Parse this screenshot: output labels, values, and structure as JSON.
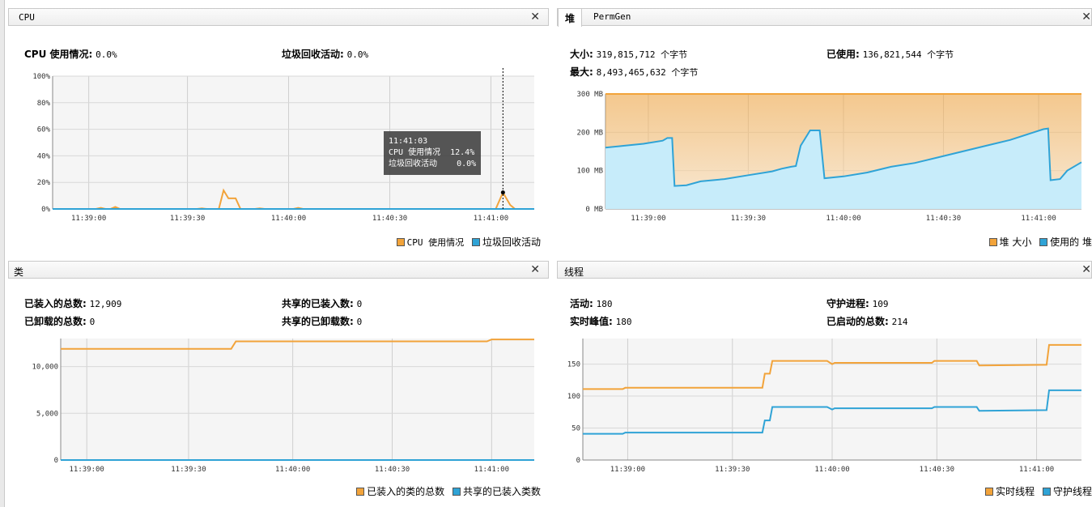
{
  "cpu": {
    "title": "CPU",
    "usage_label": "CPU 使用情况:",
    "usage_value": "0.0%",
    "gc_label": "垃圾回收活动:",
    "gc_value": "0.0%",
    "yticks": [
      "100%",
      "80%",
      "60%",
      "40%",
      "20%",
      "0%"
    ],
    "xticks": [
      "11:39:00",
      "11:39:30",
      "11:40:00",
      "11:40:30",
      "11:41:00"
    ],
    "tooltip": {
      "time": "11:41:03",
      "line1": "CPU 使用情况  12.4%",
      "line2": "垃圾回收活动    0.0%"
    },
    "legend": [
      "CPU 使用情况",
      "垃圾回收活动"
    ],
    "colors": {
      "cpu": "#f2a33a",
      "gc": "#2fa3d6"
    }
  },
  "heap": {
    "tabs": [
      "堆",
      "PermGen"
    ],
    "size_label": "大小:",
    "size_value": "319,815,712 个字节",
    "used_label": "已使用:",
    "used_value": "136,821,544 个字节",
    "max_label": "最大:",
    "max_value": "8,493,465,632 个字节",
    "yticks": [
      "300 MB",
      "200 MB",
      "100 MB",
      "0 MB"
    ],
    "xticks": [
      "11:39:00",
      "11:39:30",
      "11:40:00",
      "11:40:30",
      "11:41:00"
    ],
    "legend": [
      "堆 大小",
      "使用的 堆"
    ]
  },
  "classes": {
    "title": "类",
    "loaded_label": "已装入的总数:",
    "loaded_value": "12,909",
    "unloaded_label": "已卸载的总数:",
    "unloaded_value": "0",
    "shared_loaded_label": "共享的已装入数:",
    "shared_loaded_value": "0",
    "shared_unloaded_label": "共享的已卸载数:",
    "shared_unloaded_value": "0",
    "yticks": [
      "10,000",
      "5,000",
      "0"
    ],
    "xticks": [
      "11:39:00",
      "11:39:30",
      "11:40:00",
      "11:40:30",
      "11:41:00"
    ],
    "legend": [
      "已装入的类的总数",
      "共享的已装入类数"
    ]
  },
  "threads": {
    "title": "线程",
    "live_label": "活动:",
    "live_value": "180",
    "daemon_label": "守护进程:",
    "daemon_value": "109",
    "peak_label": "实时峰值:",
    "peak_value": "180",
    "started_label": "已启动的总数:",
    "started_value": "214",
    "yticks": [
      "150",
      "100",
      "50",
      "0"
    ],
    "xticks": [
      "11:39:00",
      "11:39:30",
      "11:40:00",
      "11:40:30",
      "11:41:00"
    ],
    "legend": [
      "实时线程",
      "守护线程"
    ]
  },
  "chart_data": [
    {
      "type": "line",
      "title": "CPU",
      "ylim": [
        0,
        100
      ],
      "series": [
        {
          "name": "CPU 使用情况",
          "points": [
            [
              0,
              0
            ],
            [
              0.09,
              0
            ],
            [
              0.1,
              0.8
            ],
            [
              0.11,
              0
            ],
            [
              0.12,
              0
            ],
            [
              0.13,
              1.5
            ],
            [
              0.14,
              0
            ],
            [
              0.3,
              0
            ],
            [
              0.31,
              0.5
            ],
            [
              0.32,
              0
            ],
            [
              0.345,
              0
            ],
            [
              0.355,
              14
            ],
            [
              0.365,
              8
            ],
            [
              0.38,
              8
            ],
            [
              0.39,
              0
            ],
            [
              0.42,
              0
            ],
            [
              0.43,
              0.5
            ],
            [
              0.44,
              0
            ],
            [
              0.5,
              0
            ],
            [
              0.51,
              0.8
            ],
            [
              0.52,
              0
            ],
            [
              0.92,
              0
            ],
            [
              0.935,
              12.4
            ],
            [
              0.95,
              3
            ],
            [
              0.96,
              0
            ],
            [
              1.0,
              0
            ]
          ]
        },
        {
          "name": "垃圾回收活动",
          "points": [
            [
              0,
              0
            ],
            [
              1,
              0
            ]
          ]
        }
      ]
    },
    {
      "type": "area",
      "title": "堆",
      "ylim": [
        0,
        300
      ],
      "series": [
        {
          "name": "堆 大小",
          "points": [
            [
              0,
              300
            ],
            [
              1,
              300
            ]
          ]
        },
        {
          "name": "使用的 堆",
          "points": [
            [
              0,
              160
            ],
            [
              0.04,
              165
            ],
            [
              0.08,
              170
            ],
            [
              0.12,
              178
            ],
            [
              0.13,
              185
            ],
            [
              0.14,
              185
            ],
            [
              0.145,
              60
            ],
            [
              0.17,
              62
            ],
            [
              0.2,
              72
            ],
            [
              0.25,
              78
            ],
            [
              0.3,
              88
            ],
            [
              0.35,
              98
            ],
            [
              0.37,
              105
            ],
            [
              0.39,
              110
            ],
            [
              0.4,
              112
            ],
            [
              0.41,
              165
            ],
            [
              0.42,
              185
            ],
            [
              0.43,
              205
            ],
            [
              0.45,
              205
            ],
            [
              0.46,
              80
            ],
            [
              0.5,
              85
            ],
            [
              0.55,
              95
            ],
            [
              0.6,
              110
            ],
            [
              0.65,
              120
            ],
            [
              0.7,
              135
            ],
            [
              0.75,
              150
            ],
            [
              0.8,
              165
            ],
            [
              0.85,
              180
            ],
            [
              0.9,
              200
            ],
            [
              0.92,
              208
            ],
            [
              0.93,
              210
            ],
            [
              0.935,
              75
            ],
            [
              0.955,
              78
            ],
            [
              0.97,
              100
            ],
            [
              1.0,
              122
            ]
          ]
        }
      ]
    },
    {
      "type": "line",
      "title": "类",
      "ylim": [
        0,
        13000
      ],
      "series": [
        {
          "name": "已装入的类的总数",
          "points": [
            [
              0,
              11900
            ],
            [
              0.36,
              11900
            ],
            [
              0.37,
              12700
            ],
            [
              0.9,
              12700
            ],
            [
              0.91,
              12909
            ],
            [
              1,
              12909
            ]
          ]
        },
        {
          "name": "共享的已装入类数",
          "points": [
            [
              0,
              0
            ],
            [
              1,
              0
            ]
          ]
        }
      ]
    },
    {
      "type": "line",
      "title": "线程",
      "ylim": [
        0,
        190
      ],
      "series": [
        {
          "name": "实时线程",
          "points": [
            [
              0,
              111
            ],
            [
              0.08,
              111
            ],
            [
              0.085,
              113
            ],
            [
              0.36,
              113
            ],
            [
              0.365,
              135
            ],
            [
              0.375,
              135
            ],
            [
              0.38,
              155
            ],
            [
              0.49,
              155
            ],
            [
              0.5,
              150
            ],
            [
              0.505,
              152
            ],
            [
              0.7,
              152
            ],
            [
              0.705,
              155
            ],
            [
              0.79,
              155
            ],
            [
              0.795,
              148
            ],
            [
              0.93,
              149
            ],
            [
              0.935,
              180
            ],
            [
              1,
              180
            ]
          ]
        },
        {
          "name": "守护线程",
          "points": [
            [
              0,
              41
            ],
            [
              0.08,
              41
            ],
            [
              0.085,
              43
            ],
            [
              0.36,
              43
            ],
            [
              0.365,
              62
            ],
            [
              0.375,
              62
            ],
            [
              0.38,
              83
            ],
            [
              0.49,
              83
            ],
            [
              0.5,
              79
            ],
            [
              0.505,
              81
            ],
            [
              0.7,
              81
            ],
            [
              0.705,
              83
            ],
            [
              0.79,
              83
            ],
            [
              0.795,
              77
            ],
            [
              0.93,
              78
            ],
            [
              0.935,
              109
            ],
            [
              1,
              109
            ]
          ]
        }
      ]
    }
  ]
}
